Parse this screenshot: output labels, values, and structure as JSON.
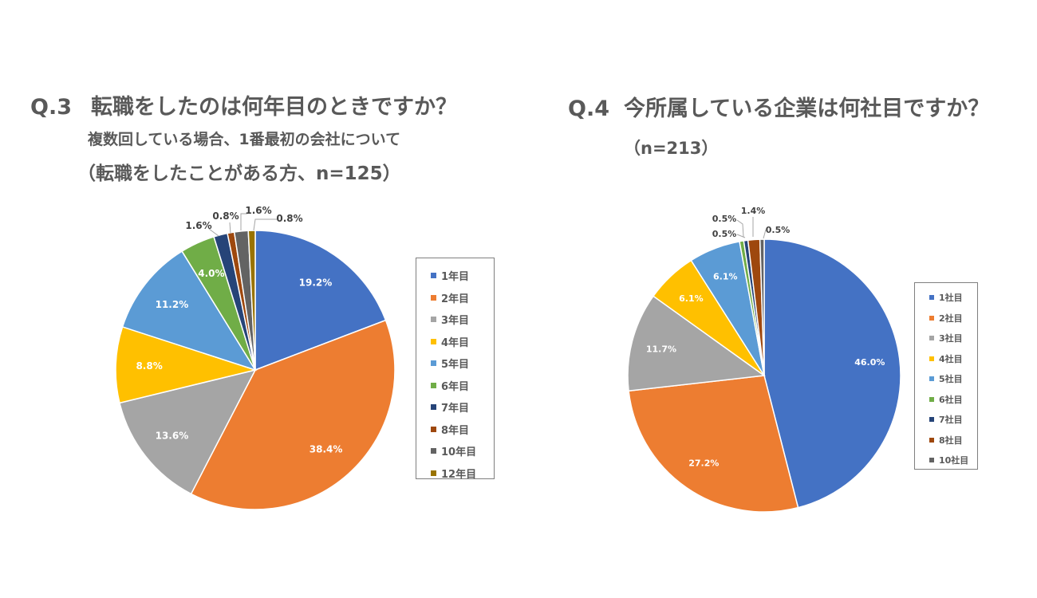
{
  "q3": {
    "number": "Q.3",
    "question": "転職をしたのは何年目のときですか？",
    "note": "複数回している場合、1番最初の会社について",
    "sample": "（転職をしたことがある方、n=125）"
  },
  "q4": {
    "number": "Q.4",
    "question": "今所属している企業は何社目ですか？",
    "sample": "（n=213）"
  },
  "colors": {
    "palette": [
      "#4472c4",
      "#ed7d31",
      "#a5a5a5",
      "#ffc000",
      "#5b9bd5",
      "#70ad47",
      "#264478",
      "#9e480e",
      "#636363",
      "#997300"
    ]
  },
  "chart_data": [
    {
      "type": "pie",
      "categories": [
        "1年目",
        "2年目",
        "3年目",
        "4年目",
        "5年目",
        "6年目",
        "7年目",
        "8年目",
        "10年目",
        "12年目"
      ],
      "values": [
        19.2,
        38.4,
        13.6,
        8.8,
        11.2,
        4.0,
        1.6,
        0.8,
        1.6,
        0.8
      ],
      "labels": [
        "19.2%",
        "38.4%",
        "13.6%",
        "8.8%",
        "11.2%",
        "4.0%",
        "1.6%",
        "0.8%",
        "1.6%",
        "0.8%"
      ],
      "legend_position": "right"
    },
    {
      "type": "pie",
      "categories": [
        "1社目",
        "2社目",
        "3社目",
        "4社目",
        "5社目",
        "6社目",
        "7社目",
        "8社目",
        "10社目"
      ],
      "values": [
        46.0,
        27.2,
        11.7,
        6.1,
        6.1,
        0.5,
        0.5,
        1.4,
        0.5
      ],
      "labels": [
        "46.0%",
        "27.2%",
        "11.7%",
        "6.1%",
        "6.1%",
        "0.5%",
        "0.5%",
        "1.4%",
        "0.5%"
      ],
      "legend_position": "right"
    }
  ]
}
